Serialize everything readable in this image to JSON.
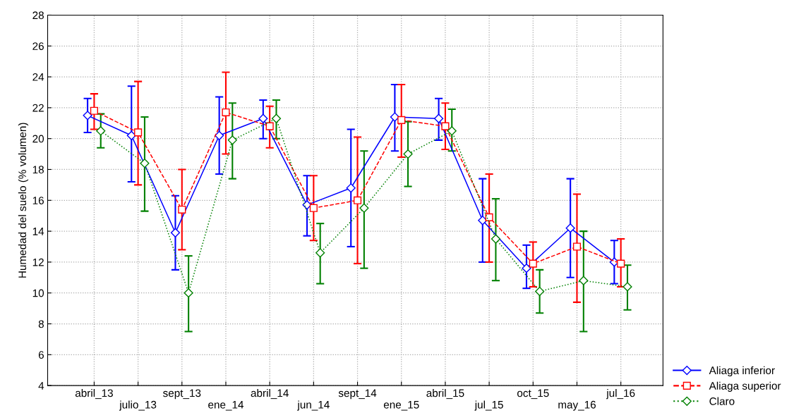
{
  "chart_data": {
    "type": "line",
    "ylabel": "Humedad del suelo (% volumen)",
    "categories": [
      "abril_13",
      "julio_13",
      "sept_13",
      "ene_14",
      "abril_14",
      "jun_14",
      "sept_14",
      "ene_15",
      "abril_15",
      "jul_15",
      "oct_15",
      "may_16",
      "jul_16"
    ],
    "ylim": [
      4,
      28
    ],
    "yticks": [
      4,
      6,
      8,
      10,
      12,
      14,
      16,
      18,
      20,
      22,
      24,
      26,
      28
    ],
    "grid": true,
    "legend": "bottom right",
    "series": [
      {
        "name": "Aliaga inferior",
        "color": "#0000ff",
        "marker": "diamond",
        "line_style": "solid",
        "values": [
          21.5,
          20.2,
          13.9,
          20.2,
          21.3,
          15.7,
          16.8,
          21.4,
          21.3,
          14.7,
          11.6,
          14.2,
          12.0
        ],
        "errors": [
          [
            20.4,
            22.6
          ],
          [
            17.2,
            23.4
          ],
          [
            11.5,
            16.3
          ],
          [
            17.7,
            22.7
          ],
          [
            20.0,
            22.5
          ],
          [
            13.7,
            17.6
          ],
          [
            13.0,
            20.6
          ],
          [
            19.2,
            23.5
          ],
          [
            19.9,
            22.6
          ],
          [
            12.0,
            17.4
          ],
          [
            10.3,
            13.1
          ],
          [
            11.0,
            17.4
          ],
          [
            10.6,
            13.4
          ]
        ]
      },
      {
        "name": "Aliaga superior",
        "color": "#ff0000",
        "marker": "square",
        "line_style": "dashed",
        "values": [
          21.8,
          20.4,
          15.4,
          21.7,
          20.8,
          15.5,
          16.0,
          21.2,
          20.8,
          14.9,
          11.9,
          13.0,
          11.9
        ],
        "errors": [
          [
            20.6,
            22.9
          ],
          [
            17.0,
            23.7
          ],
          [
            12.8,
            18.0
          ],
          [
            19.0,
            24.3
          ],
          [
            19.4,
            22.1
          ],
          [
            13.4,
            17.6
          ],
          [
            11.9,
            20.1
          ],
          [
            18.8,
            23.5
          ],
          [
            19.3,
            22.3
          ],
          [
            12.0,
            17.7
          ],
          [
            10.4,
            13.3
          ],
          [
            9.4,
            16.4
          ],
          [
            10.4,
            13.5
          ]
        ]
      },
      {
        "name": "Claro",
        "color": "#008000",
        "marker": "diamond",
        "line_style": "dotted",
        "values": [
          20.5,
          18.4,
          10.0,
          19.9,
          21.3,
          12.6,
          15.5,
          19.0,
          20.5,
          13.5,
          10.1,
          10.8,
          10.4
        ],
        "errors": [
          [
            19.4,
            21.6
          ],
          [
            15.3,
            21.4
          ],
          [
            7.5,
            12.4
          ],
          [
            17.4,
            22.3
          ],
          [
            20.0,
            22.5
          ],
          [
            10.6,
            14.5
          ],
          [
            11.6,
            19.2
          ],
          [
            16.9,
            21.1
          ],
          [
            19.2,
            21.9
          ],
          [
            10.8,
            16.1
          ],
          [
            8.7,
            11.5
          ],
          [
            7.5,
            14.0
          ],
          [
            8.9,
            11.8
          ]
        ]
      }
    ]
  }
}
